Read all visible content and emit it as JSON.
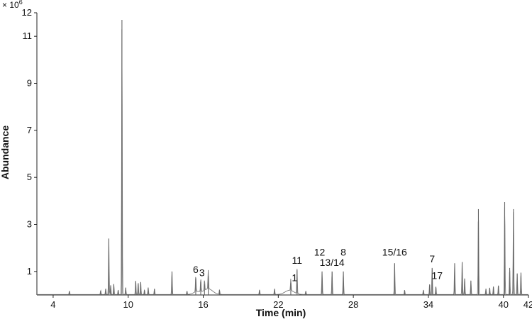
{
  "chart_data": {
    "type": "line",
    "xlabel": "Time (min)",
    "ylabel": "Abundance",
    "y_multiplier": "× 10",
    "y_multiplier_exp": "6",
    "xlim": [
      2.7,
      42
    ],
    "ylim": [
      0,
      12
    ],
    "x_ticks": [
      "4",
      "10",
      "16",
      "22",
      "28",
      "34",
      "40",
      "42"
    ],
    "x_tick_values": [
      4,
      10,
      16,
      22,
      28,
      34,
      40,
      42
    ],
    "y_ticks": [
      "1",
      "3",
      "5",
      "7",
      "9",
      "11",
      "12"
    ],
    "y_tick_values": [
      1,
      3,
      5,
      7,
      9,
      11,
      12
    ],
    "baseline": 0.02,
    "peaks": [
      [
        5.3,
        0.15
      ],
      [
        7.8,
        0.18
      ],
      [
        8.2,
        0.25
      ],
      [
        8.45,
        2.4
      ],
      [
        8.6,
        0.4
      ],
      [
        8.85,
        0.45
      ],
      [
        9.2,
        0.2
      ],
      [
        9.5,
        11.7
      ],
      [
        9.8,
        0.3
      ],
      [
        10.6,
        0.6
      ],
      [
        10.8,
        0.5
      ],
      [
        11.0,
        0.55
      ],
      [
        11.3,
        0.2
      ],
      [
        11.6,
        0.3
      ],
      [
        12.1,
        0.25
      ],
      [
        13.5,
        1.0
      ],
      [
        14.7,
        0.15
      ],
      [
        15.4,
        0.7
      ],
      [
        15.8,
        0.55
      ],
      [
        16.1,
        0.45
      ],
      [
        16.4,
        0.8
      ],
      [
        17.3,
        0.2
      ],
      [
        20.5,
        0.2
      ],
      [
        21.7,
        0.25
      ],
      [
        23.0,
        0.5
      ],
      [
        23.5,
        1.05
      ],
      [
        24.2,
        0.15
      ],
      [
        25.5,
        1.0
      ],
      [
        26.3,
        1.0
      ],
      [
        27.2,
        1.0
      ],
      [
        31.3,
        1.35
      ],
      [
        32.1,
        0.2
      ],
      [
        33.6,
        0.2
      ],
      [
        34.1,
        0.45
      ],
      [
        34.3,
        1.15
      ],
      [
        34.6,
        0.35
      ],
      [
        36.1,
        1.35
      ],
      [
        36.7,
        1.4
      ],
      [
        36.9,
        0.7
      ],
      [
        37.4,
        0.6
      ],
      [
        38.0,
        3.65
      ],
      [
        38.6,
        0.25
      ],
      [
        38.9,
        0.3
      ],
      [
        39.2,
        0.35
      ],
      [
        39.6,
        0.4
      ],
      [
        40.1,
        3.95
      ],
      [
        40.5,
        1.15
      ],
      [
        40.8,
        3.65
      ],
      [
        41.1,
        0.9
      ],
      [
        41.4,
        0.95
      ]
    ],
    "humps": [
      [
        16.4,
        0.6,
        0.5
      ],
      [
        22.9,
        0.45,
        0.5
      ],
      [
        15.5,
        0.3,
        0.4
      ]
    ],
    "annotations": [
      {
        "text": "6",
        "x": 15.4,
        "y": 0.75
      },
      {
        "text": "3",
        "x": 15.9,
        "y": 0.62
      },
      {
        "text": "1",
        "x": 23.3,
        "y": 0.4
      },
      {
        "text": "11",
        "x": 23.5,
        "y": 1.15
      },
      {
        "text": "12",
        "x": 25.3,
        "y": 1.5
      },
      {
        "text": "13/14",
        "x": 26.3,
        "y": 1.05
      },
      {
        "text": "8",
        "x": 27.2,
        "y": 1.5
      },
      {
        "text": "15/16",
        "x": 31.3,
        "y": 1.5
      },
      {
        "text": "7",
        "x": 34.3,
        "y": 1.2
      },
      {
        "text": "17",
        "x": 34.7,
        "y": 0.5
      }
    ]
  }
}
